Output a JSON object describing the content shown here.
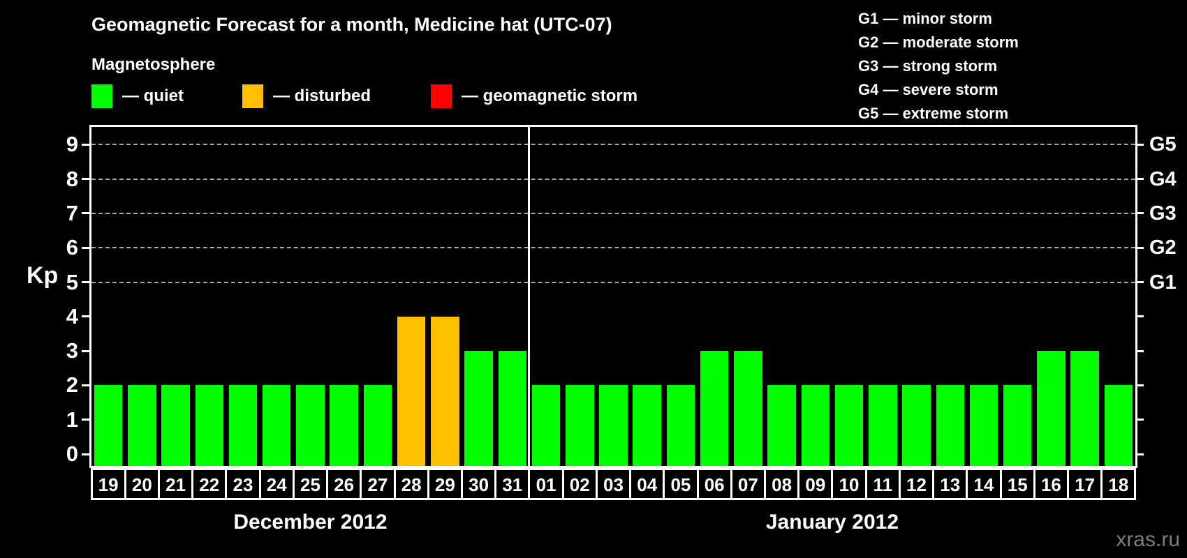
{
  "header": {
    "title": "Geomagnetic Forecast for a month, Medicine hat (UTC-07)",
    "subtitle": "Magnetosphere",
    "legend": [
      {
        "name": "quiet",
        "label": "— quiet",
        "color": "#00ff00"
      },
      {
        "name": "disturbed",
        "label": "— disturbed",
        "color": "#ffc000"
      },
      {
        "name": "storm",
        "label": "— geomagnetic storm",
        "color": "#ff0000"
      }
    ],
    "g_scale": [
      "G1 — minor storm",
      "G2 — moderate storm",
      "G3 — strong storm",
      "G4 — severe storm",
      "G5 — extreme storm"
    ]
  },
  "watermark": "xras.ru",
  "chart_data": {
    "type": "bar",
    "title": "Geomagnetic Forecast for a month, Medicine hat (UTC-07)",
    "ylabel": "Kp",
    "ylim": [
      0,
      9.5
    ],
    "yticks": [
      0,
      1,
      2,
      3,
      4,
      5,
      6,
      7,
      8,
      9
    ],
    "grid": "horizontal dashed gridlines at Kp 5-9 (G1-G5 levels)",
    "legend_position": "top-left",
    "right_axis_labels": [
      {
        "label": "G1",
        "kp": 5
      },
      {
        "label": "G2",
        "kp": 6
      },
      {
        "label": "G3",
        "kp": 7
      },
      {
        "label": "G4",
        "kp": 8
      },
      {
        "label": "G5",
        "kp": 9
      }
    ],
    "state_colors": {
      "quiet": "#00ff00",
      "disturbed": "#ffc000",
      "storm": "#ff0000"
    },
    "groups": [
      {
        "label": "December 2012",
        "key": "dec",
        "categories": [
          "19",
          "20",
          "21",
          "22",
          "23",
          "24",
          "25",
          "26",
          "27",
          "28",
          "29",
          "30",
          "31"
        ],
        "values": [
          2,
          2,
          2,
          2,
          2,
          2,
          2,
          2,
          2,
          4,
          4,
          3,
          3
        ],
        "states": [
          "quiet",
          "quiet",
          "quiet",
          "quiet",
          "quiet",
          "quiet",
          "quiet",
          "quiet",
          "quiet",
          "disturbed",
          "disturbed",
          "quiet",
          "quiet"
        ]
      },
      {
        "label": "January 2012",
        "key": "jan",
        "categories": [
          "01",
          "02",
          "03",
          "04",
          "05",
          "06",
          "07",
          "08",
          "09",
          "10",
          "11",
          "12",
          "13",
          "14",
          "15",
          "16",
          "17",
          "18"
        ],
        "values": [
          2,
          2,
          2,
          2,
          2,
          3,
          3,
          2,
          2,
          2,
          2,
          2,
          2,
          2,
          2,
          3,
          3,
          2
        ],
        "states": [
          "quiet",
          "quiet",
          "quiet",
          "quiet",
          "quiet",
          "quiet",
          "quiet",
          "quiet",
          "quiet",
          "quiet",
          "quiet",
          "quiet",
          "quiet",
          "quiet",
          "quiet",
          "quiet",
          "quiet",
          "quiet"
        ]
      }
    ]
  }
}
